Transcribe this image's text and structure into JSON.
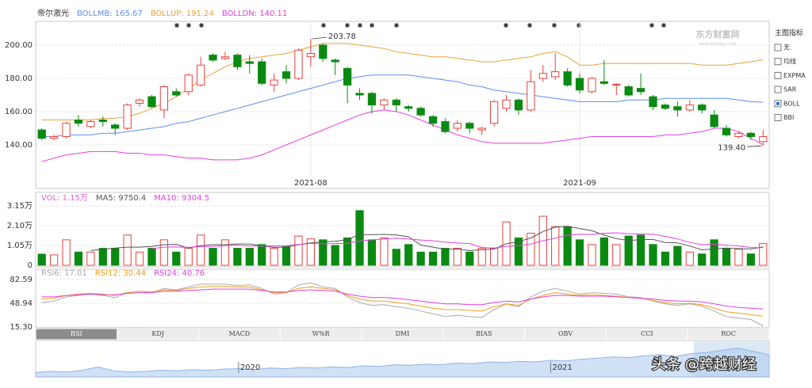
{
  "chart_data": [
    {
      "type": "candlestick",
      "title": "帝尔激光",
      "categories": [
        null,
        null,
        null,
        null,
        null,
        null,
        null,
        null,
        null,
        null,
        null,
        null,
        null,
        null,
        null,
        null,
        null,
        null,
        null,
        null,
        null,
        null,
        "2021-08",
        null,
        null,
        null,
        null,
        null,
        null,
        null,
        null,
        null,
        null,
        null,
        null,
        null,
        null,
        null,
        null,
        null,
        null,
        null,
        null,
        null,
        "2021-09",
        null,
        null,
        null,
        null,
        null,
        null,
        null,
        null,
        null,
        null,
        null,
        null,
        null,
        null,
        null
      ],
      "open": [
        149,
        144,
        145,
        155,
        151,
        155,
        152,
        150,
        165,
        169,
        161,
        172,
        172,
        176,
        194,
        192,
        194,
        190,
        190,
        176,
        184,
        180,
        193,
        200,
        191,
        186,
        171,
        171,
        164,
        167,
        163,
        162,
        157,
        154,
        150,
        153,
        149,
        153,
        162,
        167,
        161,
        180,
        181,
        184,
        180,
        172,
        178,
        176,
        175,
        174,
        169,
        164,
        163,
        161,
        164,
        158,
        150,
        145,
        147,
        142
      ],
      "high": [
        150,
        146,
        154,
        158,
        155,
        157,
        153,
        165,
        168,
        170,
        176,
        174,
        183,
        193,
        195,
        196,
        195,
        194,
        192,
        183,
        188,
        198,
        203.78,
        201,
        192,
        187,
        174,
        172,
        168,
        168,
        164,
        163,
        158,
        156,
        155,
        154,
        151,
        167,
        170,
        168,
        185,
        188,
        195,
        186,
        183,
        181,
        191,
        177,
        176,
        183,
        170,
        165,
        166,
        167,
        165,
        161,
        152,
        148,
        148,
        149
      ],
      "low": [
        143,
        143,
        144,
        151,
        150,
        151,
        146,
        149,
        163,
        162,
        156,
        169,
        170,
        175,
        190,
        191,
        185,
        183,
        176,
        172,
        177,
        179,
        187,
        190,
        182,
        165,
        167,
        159,
        161,
        160,
        160,
        157,
        151,
        147,
        148,
        147,
        146,
        151,
        160,
        158,
        160,
        178,
        179,
        175,
        171,
        171,
        176,
        170,
        169,
        170,
        161,
        161,
        157,
        160,
        159,
        150,
        145,
        144,
        143,
        139.4
      ],
      "close": [
        144,
        145,
        153,
        153,
        154,
        154,
        150,
        164,
        167,
        163,
        175,
        170,
        182,
        188,
        191,
        193,
        187,
        189,
        177,
        179,
        180,
        197,
        195,
        192,
        190,
        176,
        170,
        164,
        167,
        164,
        162,
        158,
        153,
        148,
        153,
        150,
        150,
        166,
        167,
        161,
        178,
        183,
        184,
        176,
        173,
        180,
        177,
        176.5,
        170,
        172,
        163,
        162,
        161,
        164,
        161,
        151,
        146,
        147,
        145,
        145
      ],
      "up_color": "#e8413c",
      "down_color": "#0b8a12",
      "series": [
        {
          "name": "BOLLMB: 165.67",
          "color": "#5b8def",
          "values": [
            145,
            145,
            146,
            146,
            146,
            147,
            147,
            148,
            149,
            150,
            151,
            153,
            154,
            156,
            158,
            160,
            162,
            164,
            166,
            168,
            170,
            172,
            174,
            176,
            178,
            180,
            181,
            182,
            182,
            182,
            182,
            181,
            180,
            179,
            178,
            176,
            175,
            173,
            172,
            171,
            170,
            169,
            168,
            167,
            166,
            166,
            166,
            166,
            167,
            167,
            167,
            168,
            168,
            168,
            168,
            168,
            168,
            167,
            166,
            165.67
          ]
        },
        {
          "name": "BOLLUP: 191.24",
          "color": "#e6a23c",
          "values": [
            155,
            155,
            155,
            155,
            155,
            156,
            156,
            157,
            159,
            162,
            165,
            169,
            174,
            179,
            183,
            187,
            190,
            192,
            193,
            194,
            195,
            197,
            199,
            201,
            201,
            201,
            200,
            199,
            198,
            196,
            195,
            194,
            193,
            193,
            192,
            191,
            190,
            190,
            191,
            192,
            193,
            195,
            196,
            193,
            188,
            188,
            189,
            189,
            189,
            189,
            189,
            189,
            189,
            189,
            188,
            188,
            188,
            189,
            190,
            191.24
          ]
        },
        {
          "name": "BOLLDN: 140.11",
          "color": "#e83de0",
          "values": [
            130,
            132,
            134,
            135,
            136,
            136,
            136,
            135,
            135,
            134,
            134,
            133,
            132,
            132,
            131,
            131,
            131,
            132,
            134,
            137,
            140,
            143,
            146,
            149,
            152,
            155,
            158,
            160,
            161,
            160,
            158,
            155,
            152,
            149,
            146,
            144,
            142,
            141,
            141,
            141,
            141,
            141,
            142,
            143,
            144,
            145,
            145,
            145,
            145,
            145,
            145,
            146,
            146,
            147,
            148,
            150,
            150,
            148,
            144,
            140.11
          ]
        }
      ],
      "annotations": [
        {
          "label": "203.78",
          "value": 203.78
        },
        {
          "label": "139.40",
          "value": 139.4
        }
      ],
      "ylim": [
        121.43,
        213.81
      ],
      "yticks": [
        {
          "value": 140,
          "label": "140.00"
        },
        {
          "value": 160,
          "label": "160.00"
        },
        {
          "value": 180,
          "label": "180.00"
        },
        {
          "value": 200,
          "label": "200.00"
        }
      ],
      "grid": true
    },
    {
      "type": "bar",
      "series": [
        {
          "name": "VOL: 1.15万",
          "type": "bar",
          "color": "#e659d6",
          "values": [
            0.59,
            0.55,
            1.35,
            0.7,
            0.7,
            0.9,
            0.9,
            1.6,
            0.7,
            0.9,
            1.35,
            0.7,
            0.9,
            1.6,
            0.9,
            1.35,
            0.9,
            0.9,
            1.1,
            0.9,
            1.0,
            1.55,
            1.4,
            1.35,
            1.05,
            1.45,
            2.9,
            1.35,
            1.45,
            0.85,
            1.1,
            0.7,
            0.7,
            0.9,
            0.9,
            0.7,
            0.9,
            0.9,
            2.3,
            1.45,
            1.7,
            2.6,
            2.05,
            2.05,
            1.35,
            1.1,
            1.45,
            1.1,
            1.55,
            1.6,
            1.1,
            0.7,
            1.0,
            0.7,
            0.6,
            1.35,
            0.9,
            0.85,
            0.6,
            1.15
          ]
        },
        {
          "name": "MA5: 9750.4",
          "type": "line",
          "color": "#555555",
          "values": [
            null,
            null,
            null,
            null,
            0.78,
            0.84,
            0.91,
            0.96,
            0.96,
            1.0,
            1.09,
            1.11,
            0.91,
            1.04,
            1.09,
            1.09,
            1.13,
            1.13,
            1.03,
            0.95,
            0.96,
            1.09,
            1.19,
            1.25,
            1.27,
            1.36,
            1.63,
            1.62,
            1.64,
            1.61,
            1.51,
            1.07,
            0.96,
            0.85,
            0.86,
            0.78,
            0.82,
            0.86,
            1.14,
            1.25,
            1.45,
            1.79,
            2.02,
            2.07,
            1.95,
            1.83,
            1.6,
            1.41,
            1.31,
            1.36,
            1.37,
            1.21,
            1.19,
            1.02,
            0.82,
            0.87,
            0.91,
            0.88,
            0.86,
            0.97504
          ]
        },
        {
          "name": "MA10: 9304.5",
          "type": "line",
          "color": "#e040e0",
          "values": [
            null,
            null,
            null,
            null,
            null,
            null,
            null,
            null,
            null,
            0.88,
            0.96,
            0.97,
            0.95,
            0.99,
            1.0,
            1.04,
            1.06,
            1.02,
            1.03,
            1.02,
            1.03,
            1.1,
            1.16,
            1.14,
            1.15,
            1.16,
            1.29,
            1.35,
            1.4,
            1.44,
            1.39,
            1.34,
            1.3,
            1.23,
            1.18,
            1.15,
            0.94,
            0.91,
            1.0,
            1.05,
            1.12,
            1.3,
            1.44,
            1.6,
            1.65,
            1.64,
            1.69,
            1.72,
            1.67,
            1.66,
            1.65,
            1.53,
            1.4,
            1.21,
            1.09,
            1.12,
            1.06,
            1.03,
            0.94,
            0.93045
          ]
        }
      ],
      "ylim": [
        0,
        3.57
      ],
      "yticks": [
        0,
        {
          "value": 1.05,
          "label": "1.05万"
        },
        {
          "value": 2.1,
          "label": "2.10万"
        },
        {
          "value": 3.15,
          "label": "3.15万"
        }
      ],
      "grid": true
    },
    {
      "type": "line",
      "series": [
        {
          "name": "RSI6: 17.01",
          "color": "#aaaaaa",
          "values": [
            50,
            52,
            58,
            60,
            62,
            60,
            57,
            64,
            66,
            64,
            70,
            68,
            72,
            76,
            76,
            76,
            74,
            75,
            70,
            62,
            64,
            75,
            78,
            72,
            70,
            58,
            50,
            46,
            47,
            44,
            42,
            38,
            34,
            30,
            32,
            30,
            29,
            40,
            48,
            44,
            58,
            66,
            70,
            66,
            62,
            64,
            63,
            62,
            58,
            57,
            52,
            48,
            46,
            48,
            45,
            38,
            30,
            28,
            26,
            17.01
          ]
        },
        {
          "name": "RSI12: 30.44",
          "color": "#f0a020",
          "values": [
            55,
            56,
            60,
            62,
            63,
            62,
            60,
            64,
            66,
            65,
            68,
            67,
            70,
            72,
            73,
            73,
            72,
            72,
            68,
            64,
            64,
            70,
            72,
            70,
            68,
            60,
            55,
            52,
            52,
            50,
            48,
            45,
            42,
            40,
            40,
            39,
            38,
            44,
            48,
            46,
            55,
            60,
            64,
            62,
            60,
            61,
            60,
            59,
            57,
            56,
            53,
            50,
            48,
            49,
            47,
            42,
            37,
            35,
            33,
            30.44
          ]
        },
        {
          "name": "RSI24: 40.76",
          "color": "#e040e0",
          "values": [
            58,
            58,
            60,
            61,
            62,
            61,
            61,
            63,
            64,
            64,
            66,
            66,
            67,
            68,
            69,
            69,
            69,
            69,
            67,
            65,
            65,
            67,
            68,
            67,
            66,
            62,
            59,
            57,
            57,
            56,
            54,
            52,
            50,
            48,
            48,
            47,
            47,
            50,
            52,
            51,
            55,
            58,
            60,
            60,
            59,
            59,
            59,
            58,
            57,
            56,
            55,
            53,
            52,
            52,
            51,
            48,
            45,
            43,
            42,
            40.76
          ]
        }
      ],
      "ylim": [
        14.18,
        91.57
      ],
      "yticks": [
        {
          "value": 15.3,
          "label": "15.30"
        },
        48.94,
        82.59
      ],
      "grid": true
    },
    {
      "type": "area",
      "color": "#a9c8ee",
      "categories": [
        null,
        null,
        null,
        null,
        null,
        null,
        null,
        null,
        null,
        null,
        null,
        null,
        null,
        "2020",
        null,
        null,
        null,
        null,
        null,
        null,
        null,
        null,
        null,
        null,
        null,
        null,
        null,
        null,
        null,
        null,
        null,
        null,
        null,
        "2021",
        null,
        null,
        null,
        null,
        null,
        null,
        null,
        null,
        null,
        null,
        null,
        null,
        null,
        null
      ],
      "values": [
        8,
        10,
        9,
        12,
        18,
        11,
        9,
        10,
        12,
        11,
        13,
        12,
        14,
        15,
        13,
        16,
        15,
        17,
        16,
        18,
        17,
        20,
        19,
        22,
        21,
        23,
        22,
        25,
        24,
        27,
        26,
        28,
        27,
        30,
        29,
        32,
        34,
        36,
        35,
        38,
        40,
        37,
        42,
        44,
        48,
        52,
        46,
        40
      ],
      "ylim": [
        0,
        60
      ]
    }
  ],
  "main_indicator": {
    "title": "主图指标",
    "options": [
      "无",
      "均线",
      "EXPMA",
      "SAR",
      "BOLL",
      "BBI"
    ],
    "checked": "BOLL"
  },
  "tabs": [
    "RSI",
    "KDJ",
    "MACD",
    "W%R",
    "DMI",
    "BIAS",
    "OBV",
    "CCI",
    "ROC"
  ],
  "logo": {
    "name": "东方财富网",
    "site": "eastmoney.com"
  },
  "watermark": "头条 @跨越财经"
}
